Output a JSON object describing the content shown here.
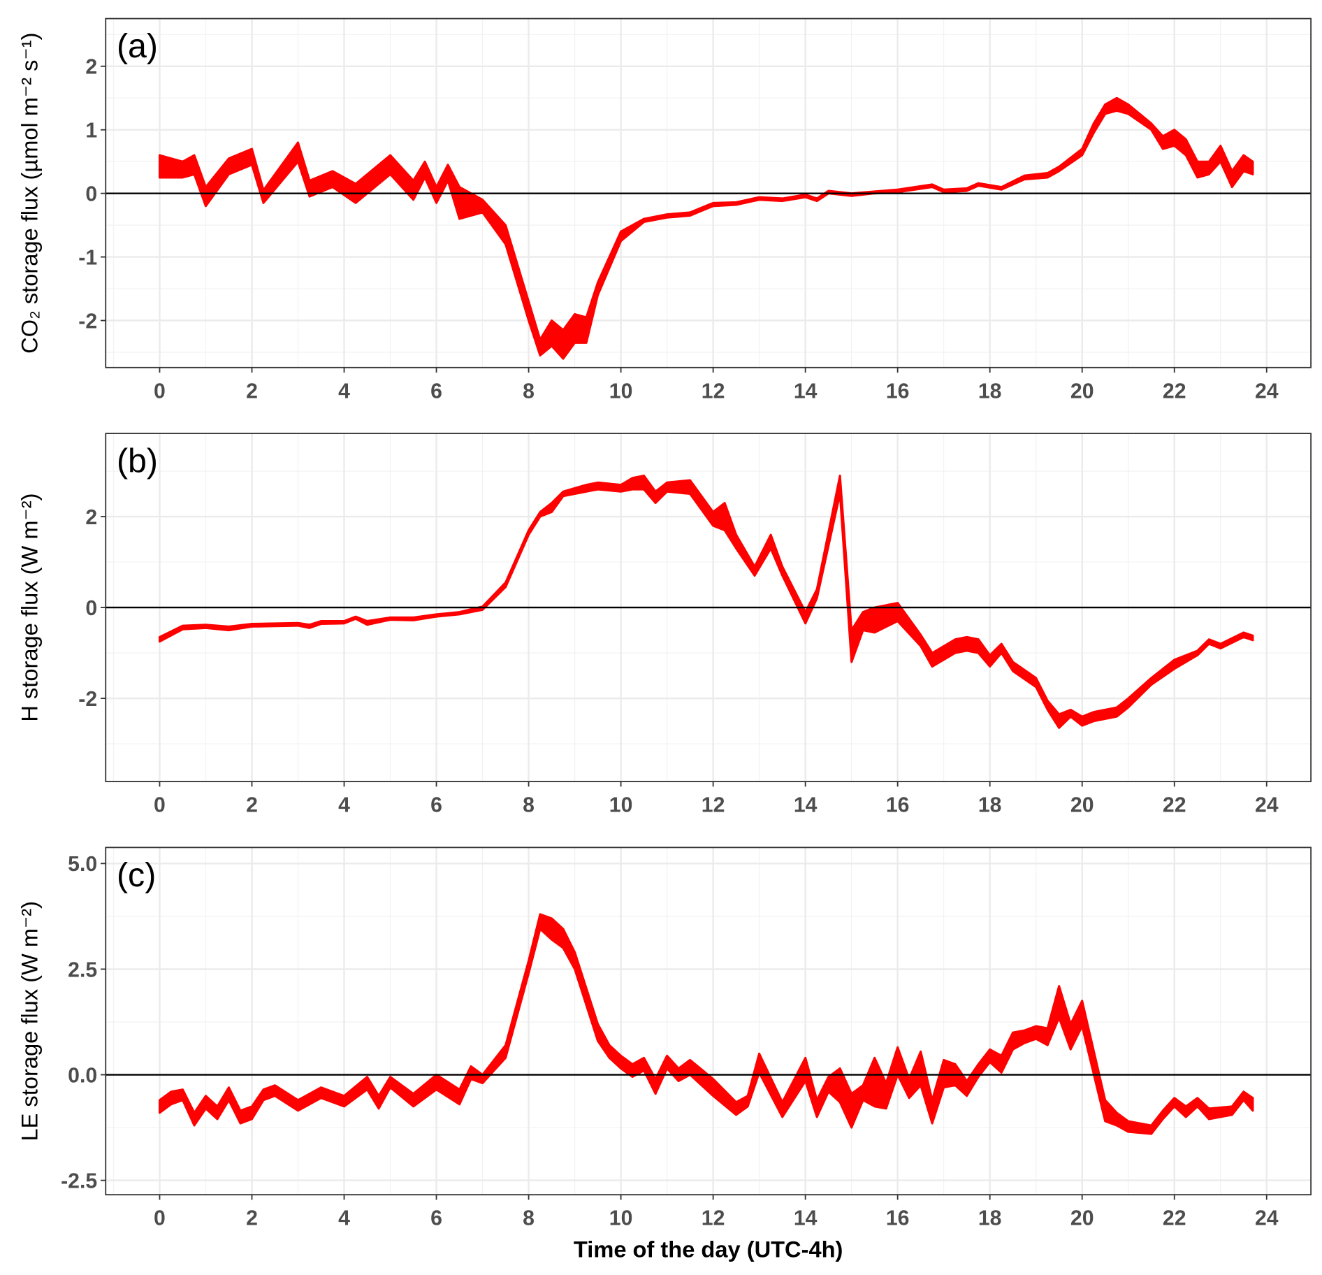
{
  "chart_data": [
    {
      "type": "area",
      "panel_label": "(a)",
      "ylabel": "CO₂ storage flux (µmol m⁻² s⁻¹)",
      "xlabel": "",
      "xlim": [
        -1.17,
        24.96
      ],
      "ylim": [
        -2.74,
        2.75
      ],
      "xticks": [
        0,
        2,
        4,
        6,
        8,
        10,
        12,
        14,
        16,
        18,
        20,
        22,
        24
      ],
      "yticks": [
        -2,
        -1,
        0,
        1,
        2
      ],
      "ytick_labels": [
        "-2",
        "-1",
        "0",
        "1",
        "2"
      ],
      "yminor": [
        -2.5,
        -1.5,
        -0.5,
        0.5,
        1.5,
        2.5
      ],
      "reference_line": 0,
      "fill_color": "#ff0000",
      "series_format": "[x_hour, lower, upper]",
      "ribbon": [
        [
          0,
          0.25,
          0.6
        ],
        [
          0.5,
          0.25,
          0.5
        ],
        [
          0.75,
          0.3,
          0.6
        ],
        [
          1,
          -0.2,
          0.1
        ],
        [
          1.5,
          0.3,
          0.55
        ],
        [
          2,
          0.45,
          0.7
        ],
        [
          2.25,
          -0.15,
          0.05
        ],
        [
          3,
          0.5,
          0.8
        ],
        [
          3.25,
          -0.05,
          0.2
        ],
        [
          3.75,
          0.1,
          0.35
        ],
        [
          4.25,
          -0.15,
          0.15
        ],
        [
          5,
          0.3,
          0.6
        ],
        [
          5.5,
          -0.1,
          0.2
        ],
        [
          5.75,
          0.25,
          0.5
        ],
        [
          6,
          -0.15,
          0.1
        ],
        [
          6.25,
          0.2,
          0.45
        ],
        [
          6.5,
          -0.4,
          0.1
        ],
        [
          7,
          -0.3,
          -0.1
        ],
        [
          7.5,
          -0.8,
          -0.5
        ],
        [
          8,
          -2.0,
          -1.7
        ],
        [
          8.25,
          -2.55,
          -2.3
        ],
        [
          8.5,
          -2.4,
          -2.0
        ],
        [
          8.75,
          -2.6,
          -2.15
        ],
        [
          9,
          -2.35,
          -1.9
        ],
        [
          9.25,
          -2.35,
          -1.95
        ],
        [
          9.5,
          -1.6,
          -1.4
        ],
        [
          10,
          -0.75,
          -0.6
        ],
        [
          10.5,
          -0.45,
          -0.4
        ],
        [
          11,
          -0.38,
          -0.33
        ],
        [
          11.5,
          -0.35,
          -0.3
        ],
        [
          12,
          -0.2,
          -0.15
        ],
        [
          12.5,
          -0.18,
          -0.14
        ],
        [
          13,
          -0.1,
          -0.06
        ],
        [
          13.5,
          -0.12,
          -0.08
        ],
        [
          14,
          -0.06,
          -0.02
        ],
        [
          14.25,
          -0.12,
          -0.08
        ],
        [
          14.5,
          0.0,
          0.04
        ],
        [
          15,
          -0.04,
          0.0
        ],
        [
          15.5,
          0.0,
          0.03
        ],
        [
          16,
          0.02,
          0.06
        ],
        [
          16.75,
          0.1,
          0.14
        ],
        [
          17,
          0.02,
          0.06
        ],
        [
          17.5,
          0.04,
          0.08
        ],
        [
          17.75,
          0.12,
          0.16
        ],
        [
          18.25,
          0.06,
          0.1
        ],
        [
          18.75,
          0.22,
          0.28
        ],
        [
          19.25,
          0.25,
          0.32
        ],
        [
          19.5,
          0.35,
          0.42
        ],
        [
          20,
          0.6,
          0.7
        ],
        [
          20.25,
          0.95,
          1.1
        ],
        [
          20.5,
          1.25,
          1.4
        ],
        [
          20.75,
          1.3,
          1.5
        ],
        [
          21,
          1.25,
          1.4
        ],
        [
          21.5,
          1.0,
          1.1
        ],
        [
          21.75,
          0.7,
          0.9
        ],
        [
          22,
          0.75,
          1.0
        ],
        [
          22.25,
          0.6,
          0.85
        ],
        [
          22.5,
          0.25,
          0.5
        ],
        [
          22.75,
          0.3,
          0.5
        ],
        [
          23,
          0.5,
          0.75
        ],
        [
          23.25,
          0.1,
          0.35
        ],
        [
          23.5,
          0.35,
          0.6
        ],
        [
          23.7,
          0.3,
          0.5
        ]
      ]
    },
    {
      "type": "area",
      "panel_label": "(b)",
      "ylabel": "H storage flux (W m⁻²)",
      "xlabel": "",
      "xlim": [
        -1.17,
        24.96
      ],
      "ylim": [
        -3.83,
        3.83
      ],
      "xticks": [
        0,
        2,
        4,
        6,
        8,
        10,
        12,
        14,
        16,
        18,
        20,
        22,
        24
      ],
      "yticks": [
        -2,
        0,
        2
      ],
      "ytick_labels": [
        "-2",
        "0",
        "2"
      ],
      "yminor": [
        -3,
        -1,
        1,
        3
      ],
      "reference_line": 0,
      "fill_color": "#ff0000",
      "series_format": "[x_hour, lower, upper]",
      "ribbon": [
        [
          0,
          -0.75,
          -0.65
        ],
        [
          0.5,
          -0.48,
          -0.4
        ],
        [
          1,
          -0.45,
          -0.38
        ],
        [
          1.5,
          -0.5,
          -0.42
        ],
        [
          2,
          -0.42,
          -0.36
        ],
        [
          3,
          -0.4,
          -0.34
        ],
        [
          3.25,
          -0.45,
          -0.38
        ],
        [
          3.5,
          -0.36,
          -0.3
        ],
        [
          4,
          -0.35,
          -0.3
        ],
        [
          4.25,
          -0.25,
          -0.2
        ],
        [
          4.5,
          -0.38,
          -0.3
        ],
        [
          5,
          -0.27,
          -0.22
        ],
        [
          5.5,
          -0.28,
          -0.22
        ],
        [
          6,
          -0.2,
          -0.15
        ],
        [
          6.5,
          -0.15,
          -0.1
        ],
        [
          7,
          -0.05,
          0.02
        ],
        [
          7.5,
          0.45,
          0.55
        ],
        [
          8,
          1.6,
          1.7
        ],
        [
          8.25,
          2.0,
          2.1
        ],
        [
          8.5,
          2.1,
          2.3
        ],
        [
          8.75,
          2.45,
          2.55
        ],
        [
          9.25,
          2.55,
          2.7
        ],
        [
          9.5,
          2.6,
          2.75
        ],
        [
          10,
          2.55,
          2.7
        ],
        [
          10.25,
          2.6,
          2.85
        ],
        [
          10.5,
          2.6,
          2.9
        ],
        [
          10.75,
          2.3,
          2.55
        ],
        [
          11,
          2.55,
          2.75
        ],
        [
          11.5,
          2.5,
          2.8
        ],
        [
          12,
          1.8,
          2.1
        ],
        [
          12.25,
          1.7,
          2.3
        ],
        [
          12.5,
          1.3,
          1.6
        ],
        [
          12.9,
          0.7,
          0.9
        ],
        [
          13.25,
          1.3,
          1.6
        ],
        [
          13.5,
          0.7,
          0.9
        ],
        [
          14,
          -0.35,
          -0.1
        ],
        [
          14.25,
          0.2,
          0.4
        ],
        [
          14.75,
          2.5,
          2.9
        ],
        [
          15,
          -1.2,
          -0.5
        ],
        [
          15.25,
          -0.5,
          -0.1
        ],
        [
          15.5,
          -0.55,
          0.0
        ],
        [
          16,
          -0.3,
          0.1
        ],
        [
          16.5,
          -0.85,
          -0.6
        ],
        [
          16.75,
          -1.3,
          -1.0
        ],
        [
          17.25,
          -1.0,
          -0.7
        ],
        [
          17.5,
          -0.95,
          -0.65
        ],
        [
          17.75,
          -1.0,
          -0.7
        ],
        [
          18,
          -1.3,
          -1.05
        ],
        [
          18.25,
          -1.0,
          -0.8
        ],
        [
          18.5,
          -1.4,
          -1.2
        ],
        [
          19,
          -1.75,
          -1.55
        ],
        [
          19.25,
          -2.25,
          -2.05
        ],
        [
          19.5,
          -2.65,
          -2.35
        ],
        [
          19.75,
          -2.4,
          -2.25
        ],
        [
          20,
          -2.6,
          -2.4
        ],
        [
          20.25,
          -2.5,
          -2.3
        ],
        [
          20.75,
          -2.4,
          -2.2
        ],
        [
          21,
          -2.2,
          -2.0
        ],
        [
          21.5,
          -1.7,
          -1.55
        ],
        [
          22,
          -1.35,
          -1.15
        ],
        [
          22.5,
          -1.05,
          -0.95
        ],
        [
          22.75,
          -0.8,
          -0.7
        ],
        [
          23,
          -0.9,
          -0.8
        ],
        [
          23.5,
          -0.65,
          -0.55
        ],
        [
          23.7,
          -0.72,
          -0.62
        ]
      ]
    },
    {
      "type": "area",
      "panel_label": "(c)",
      "ylabel": "LE storage flux (W m⁻²)",
      "xlabel": "Time of the day (UTC-4h)",
      "xlim": [
        -1.17,
        24.96
      ],
      "ylim": [
        -2.84,
        5.38
      ],
      "xticks": [
        0,
        2,
        4,
        6,
        8,
        10,
        12,
        14,
        16,
        18,
        20,
        22,
        24
      ],
      "yticks": [
        -2.5,
        0,
        2.5,
        5
      ],
      "ytick_labels": [
        "-2.5",
        "0.0",
        "2.5",
        "5.0"
      ],
      "yminor": [
        -1.25,
        1.25,
        3.75
      ],
      "reference_line": 0,
      "fill_color": "#ff0000",
      "series_format": "[x_hour, lower, upper]",
      "ribbon": [
        [
          0,
          -0.9,
          -0.6
        ],
        [
          0.25,
          -0.7,
          -0.4
        ],
        [
          0.5,
          -0.6,
          -0.35
        ],
        [
          0.75,
          -1.2,
          -0.9
        ],
        [
          1,
          -0.8,
          -0.5
        ],
        [
          1.25,
          -1.05,
          -0.75
        ],
        [
          1.5,
          -0.6,
          -0.3
        ],
        [
          1.75,
          -1.15,
          -0.85
        ],
        [
          2,
          -1.05,
          -0.75
        ],
        [
          2.25,
          -0.6,
          -0.35
        ],
        [
          2.5,
          -0.5,
          -0.25
        ],
        [
          3,
          -0.85,
          -0.6
        ],
        [
          3.5,
          -0.55,
          -0.3
        ],
        [
          4,
          -0.75,
          -0.5
        ],
        [
          4.5,
          -0.35,
          -0.05
        ],
        [
          4.75,
          -0.8,
          -0.5
        ],
        [
          5,
          -0.3,
          -0.05
        ],
        [
          5.5,
          -0.75,
          -0.45
        ],
        [
          6,
          -0.35,
          0.0
        ],
        [
          6.5,
          -0.7,
          -0.35
        ],
        [
          6.75,
          -0.1,
          0.2
        ],
        [
          7,
          -0.2,
          0.0
        ],
        [
          7.25,
          0.1,
          0.35
        ],
        [
          7.5,
          0.4,
          0.7
        ],
        [
          8,
          2.4,
          2.7
        ],
        [
          8.25,
          3.45,
          3.8
        ],
        [
          8.5,
          3.2,
          3.7
        ],
        [
          8.75,
          3.0,
          3.45
        ],
        [
          9,
          2.5,
          2.9
        ],
        [
          9.5,
          0.8,
          1.2
        ],
        [
          9.75,
          0.4,
          0.7
        ],
        [
          10,
          0.15,
          0.45
        ],
        [
          10.25,
          -0.05,
          0.25
        ],
        [
          10.5,
          0.1,
          0.4
        ],
        [
          10.75,
          -0.45,
          -0.1
        ],
        [
          11,
          0.15,
          0.45
        ],
        [
          11.25,
          -0.15,
          0.15
        ],
        [
          11.5,
          0.0,
          0.35
        ],
        [
          12,
          -0.5,
          -0.1
        ],
        [
          12.5,
          -0.95,
          -0.65
        ],
        [
          12.75,
          -0.75,
          -0.5
        ],
        [
          13,
          0.05,
          0.5
        ],
        [
          13.5,
          -1.0,
          -0.65
        ],
        [
          14,
          -0.15,
          0.4
        ],
        [
          14.25,
          -1.0,
          -0.6
        ],
        [
          14.5,
          -0.4,
          -0.05
        ],
        [
          14.75,
          -0.65,
          0.15
        ],
        [
          15,
          -1.25,
          -0.45
        ],
        [
          15.25,
          -0.6,
          -0.25
        ],
        [
          15.5,
          -0.75,
          0.4
        ],
        [
          15.75,
          -0.8,
          -0.2
        ],
        [
          16,
          0.0,
          0.65
        ],
        [
          16.25,
          -0.55,
          -0.1
        ],
        [
          16.5,
          -0.25,
          0.55
        ],
        [
          16.75,
          -1.15,
          -0.6
        ],
        [
          17,
          -0.3,
          0.35
        ],
        [
          17.25,
          -0.25,
          0.25
        ],
        [
          17.5,
          -0.5,
          -0.15
        ],
        [
          17.75,
          -0.05,
          0.25
        ],
        [
          18,
          0.3,
          0.6
        ],
        [
          18.25,
          0.05,
          0.45
        ],
        [
          18.5,
          0.6,
          1.0
        ],
        [
          18.75,
          0.75,
          1.05
        ],
        [
          19,
          0.85,
          1.15
        ],
        [
          19.25,
          0.7,
          1.1
        ],
        [
          19.5,
          1.35,
          2.1
        ],
        [
          19.75,
          0.6,
          1.2
        ],
        [
          20,
          1.15,
          1.75
        ],
        [
          20.5,
          -1.1,
          -0.6
        ],
        [
          20.75,
          -1.2,
          -0.9
        ],
        [
          21,
          -1.35,
          -1.1
        ],
        [
          21.5,
          -1.4,
          -1.2
        ],
        [
          21.75,
          -1.05,
          -0.85
        ],
        [
          22,
          -0.75,
          -0.55
        ],
        [
          22.25,
          -1.0,
          -0.75
        ],
        [
          22.5,
          -0.75,
          -0.55
        ],
        [
          22.75,
          -1.05,
          -0.8
        ],
        [
          23.25,
          -0.95,
          -0.75
        ],
        [
          23.5,
          -0.6,
          -0.4
        ],
        [
          23.7,
          -0.85,
          -0.55
        ]
      ]
    }
  ]
}
